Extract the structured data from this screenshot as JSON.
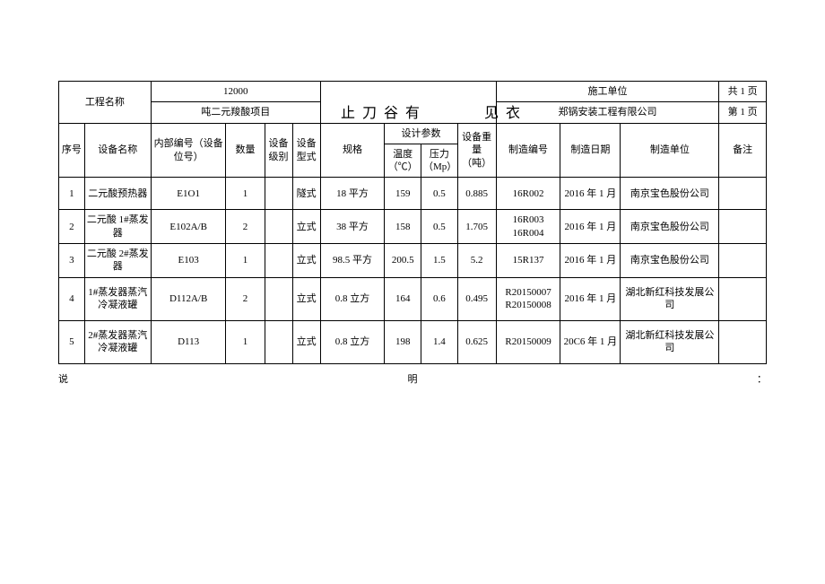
{
  "header": {
    "project_label": "工程名称",
    "project_num": "12000",
    "project_name": "吨二元羧酸项目",
    "title_main": "止刀谷有",
    "title_sub": "见衣",
    "construction_label": "施工单位",
    "construction_unit": "郑锅安装工程有限公司",
    "page_total": "共 1 页",
    "page_current": "第 1 页"
  },
  "columns": {
    "seq": "序号",
    "name": "设备名称",
    "code": "内部编号（设备位号）",
    "qty": "数量",
    "level": "设备级别",
    "type": "设备型式",
    "spec": "规格",
    "design_param": "设计参数",
    "temp": "温度（℃）",
    "press": "压力（Mp）",
    "weight": "设备重量（吨）",
    "mfgno": "制造编号",
    "mfgdate": "制造日期",
    "mfgunit": "制造单位",
    "remark": "备注"
  },
  "rows": [
    {
      "seq": "1",
      "name": "二元酸预热器",
      "code": "E1O1",
      "qty": "1",
      "level": "",
      "type": "隧式",
      "spec": "18 平方",
      "temp": "159",
      "press": "0.5",
      "weight": "0.885",
      "mfgno": "16R002",
      "mfgdate": "2016 年 1 月",
      "mfgunit": "南京宝色股份公司",
      "remark": ""
    },
    {
      "seq": "2",
      "name": "二元酸 1#蒸发器",
      "code": "E102A/B",
      "qty": "2",
      "level": "",
      "type": "立式",
      "spec": "38 平方",
      "temp": "158",
      "press": "0.5",
      "weight": "1.705",
      "mfgno": "16R003 16R004",
      "mfgdate": "2016 年 1 月",
      "mfgunit": "南京宝色股份公司",
      "remark": ""
    },
    {
      "seq": "3",
      "name": "二元酸 2#蒸发器",
      "code": "E103",
      "qty": "1",
      "level": "",
      "type": "立式",
      "spec": "98.5 平方",
      "temp": "200.5",
      "press": "1.5",
      "weight": "5.2",
      "mfgno": "15R137",
      "mfgdate": "2016 年 1 月",
      "mfgunit": "南京宝色股份公司",
      "remark": ""
    },
    {
      "seq": "4",
      "name": "1#蒸发器蒸汽冷凝液罐",
      "code": "D112A/B",
      "qty": "2",
      "level": "",
      "type": "立式",
      "spec": "0.8 立方",
      "temp": "164",
      "press": "0.6",
      "weight": "0.495",
      "mfgno": "R20150007 R20150008",
      "mfgdate": "2016 年 1 月",
      "mfgunit": "湖北新红科技发展公司",
      "remark": ""
    },
    {
      "seq": "5",
      "name": "2#蒸发器蒸汽冷凝液罐",
      "code": "D113",
      "qty": "1",
      "level": "",
      "type": "立式",
      "spec": "0.8 立方",
      "temp": "198",
      "press": "1.4",
      "weight": "0.625",
      "mfgno": "R20150009",
      "mfgdate": "20C6 年 1 月",
      "mfgunit": "湖北新红科技发展公司",
      "remark": ""
    }
  ],
  "footer": {
    "left": "说",
    "mid": "明",
    "right": "："
  }
}
